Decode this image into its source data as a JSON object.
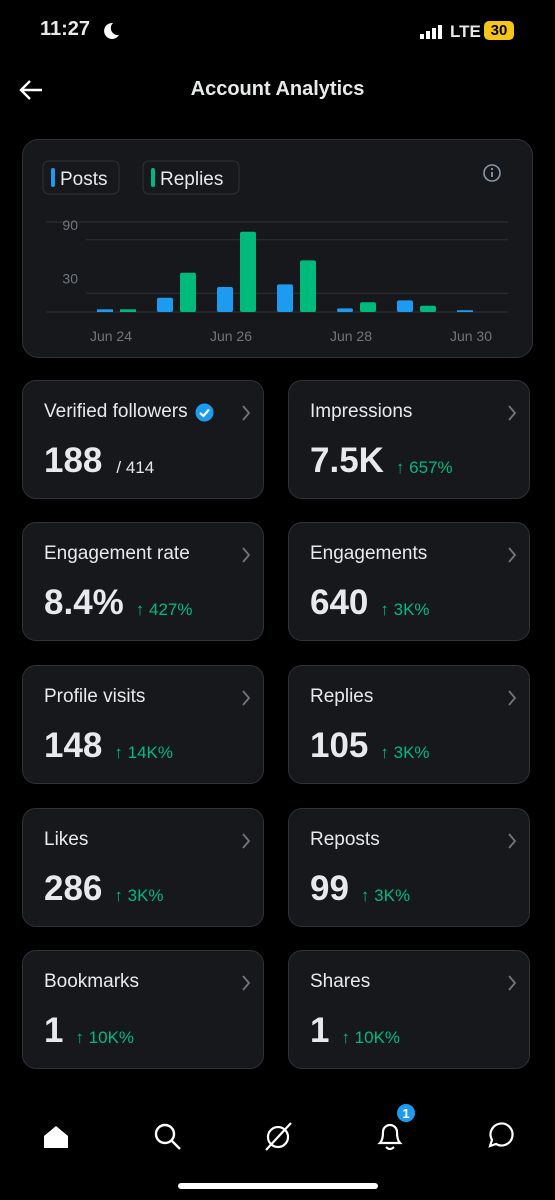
{
  "status": {
    "time": "11:27",
    "network": "LTE",
    "battery": "30"
  },
  "header": {
    "title": "Account Analytics"
  },
  "chart": {
    "type": "bar",
    "categories": [
      "Jun 24",
      null,
      "Jun 26",
      null,
      "Jun 28",
      null,
      "Jun 30"
    ],
    "series": [
      {
        "name": "Posts",
        "color": "#1d9bf0",
        "values": [
          3,
          16,
          28,
          31,
          4,
          13,
          2
        ]
      },
      {
        "name": "Replies",
        "color": "#00ba7c",
        "values": [
          3,
          44,
          90,
          58,
          11,
          7,
          0
        ]
      }
    ],
    "ylim": [
      0,
      101
    ],
    "yticks": [
      30,
      90
    ],
    "grid": true
  },
  "cards": [
    {
      "label": "Verified followers",
      "value": "188",
      "sub": "/ 414",
      "verified": true
    },
    {
      "label": "Impressions",
      "value": "7.5K",
      "change": "↑ 657%"
    },
    {
      "label": "Engagement rate",
      "value": "8.4%",
      "change": "↑ 427%"
    },
    {
      "label": "Engagements",
      "value": "640",
      "change": "↑ 3K%"
    },
    {
      "label": "Profile visits",
      "value": "148",
      "change": "↑ 14K%"
    },
    {
      "label": "Replies",
      "value": "105",
      "change": "↑ 3K%"
    },
    {
      "label": "Likes",
      "value": "286",
      "change": "↑ 3K%"
    },
    {
      "label": "Reposts",
      "value": "99",
      "change": "↑ 3K%"
    },
    {
      "label": "Bookmarks",
      "value": "1",
      "change": "↑ 10K%"
    },
    {
      "label": "Shares",
      "value": "1",
      "change": "↑ 10K%"
    }
  ],
  "nav": {
    "badge": "1"
  }
}
